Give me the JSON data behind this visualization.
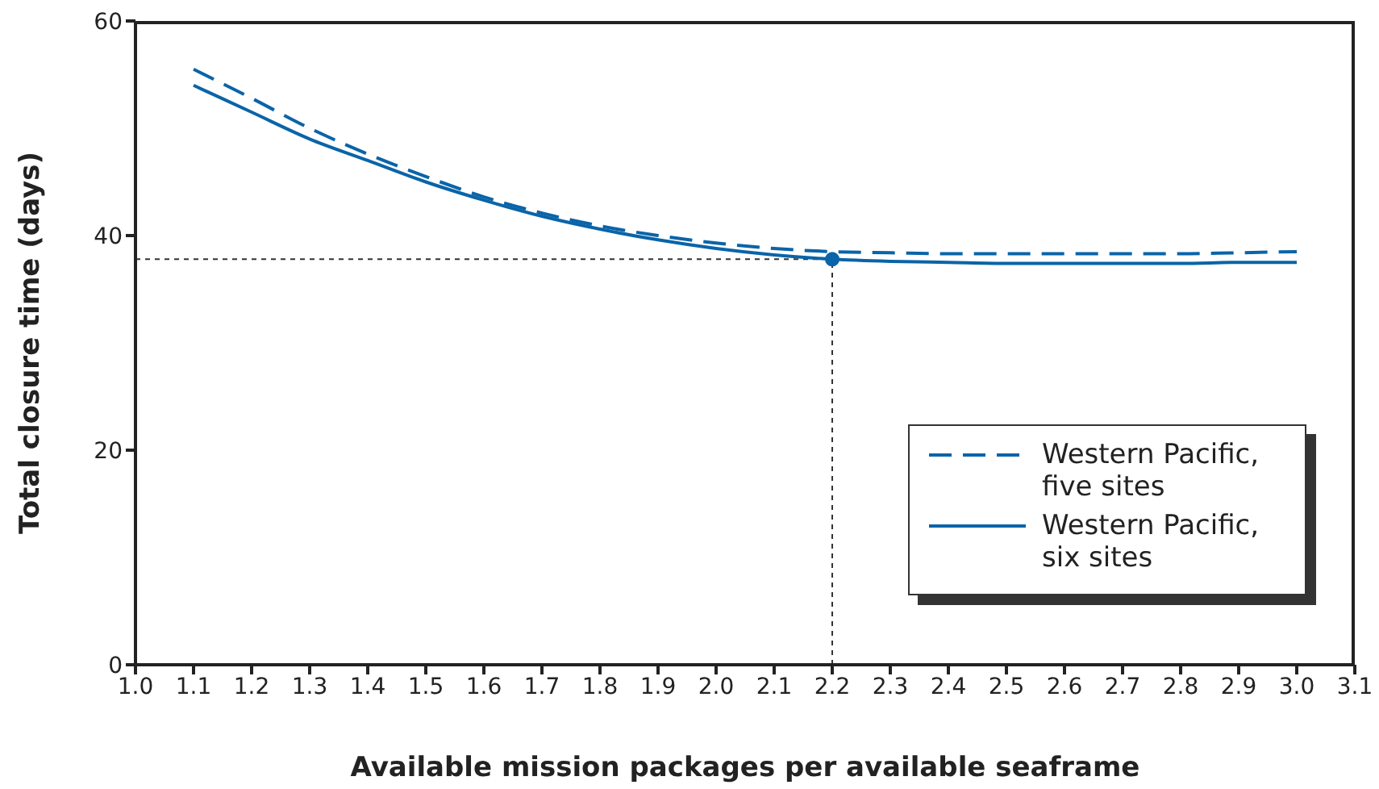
{
  "chart_data": {
    "type": "line",
    "xlabel": "Available mission packages per available seaframe",
    "ylabel": "Total closure time (days)",
    "xlim": [
      1.0,
      3.1
    ],
    "xticks": [
      {
        "value": 1.0,
        "label": "1.0"
      },
      1.1,
      1.2,
      1.3,
      1.4,
      1.5,
      1.6,
      1.7,
      1.8,
      1.9,
      {
        "value": 2.0,
        "label": "2.0"
      },
      2.1,
      2.2,
      2.3,
      2.4,
      2.5,
      2.6,
      2.7,
      2.8,
      2.9,
      {
        "value": 3.0,
        "label": "3.0"
      },
      3.1
    ],
    "ylim": [
      0,
      60
    ],
    "yticks": [
      0,
      20,
      40,
      60
    ],
    "grid": false,
    "legend": "bottom right",
    "marker": "none",
    "x": [
      1.1,
      1.2,
      1.3,
      1.4,
      1.5,
      1.6,
      1.7,
      1.8,
      1.9,
      2.0,
      2.1,
      2.2,
      2.3,
      2.4,
      2.5,
      2.6,
      2.7,
      2.8,
      2.9,
      3.0
    ],
    "series": [
      {
        "name": "Western Pacific, five sites",
        "color": "#0a64a8",
        "line_style": "dashed",
        "values": [
          55.5,
          52.8,
          50.0,
          47.6,
          45.5,
          43.6,
          42.1,
          40.9,
          40.0,
          39.3,
          38.8,
          38.5,
          38.4,
          38.3,
          38.3,
          38.3,
          38.3,
          38.3,
          38.4,
          38.5
        ]
      },
      {
        "name": "Western Pacific, six sites",
        "color": "#0a64a8",
        "line_style": "solid",
        "values": [
          54.0,
          51.5,
          49.0,
          47.0,
          45.0,
          43.3,
          41.8,
          40.6,
          39.6,
          38.8,
          38.2,
          37.8,
          37.6,
          37.5,
          37.4,
          37.4,
          37.4,
          37.4,
          37.5,
          37.5
        ]
      },
      {
        "type": "scatter",
        "color": "#0a64a8",
        "marker": "circle",
        "x": [
          2.2
        ],
        "values": [
          37.8
        ]
      }
    ],
    "ref_lines": [
      {
        "axis": "y",
        "value": 37.8,
        "color": "#333333",
        "line_style": "dotted"
      },
      {
        "axis": "x",
        "value": 2.2,
        "color": "#333333",
        "line_style": "dotted"
      }
    ]
  }
}
